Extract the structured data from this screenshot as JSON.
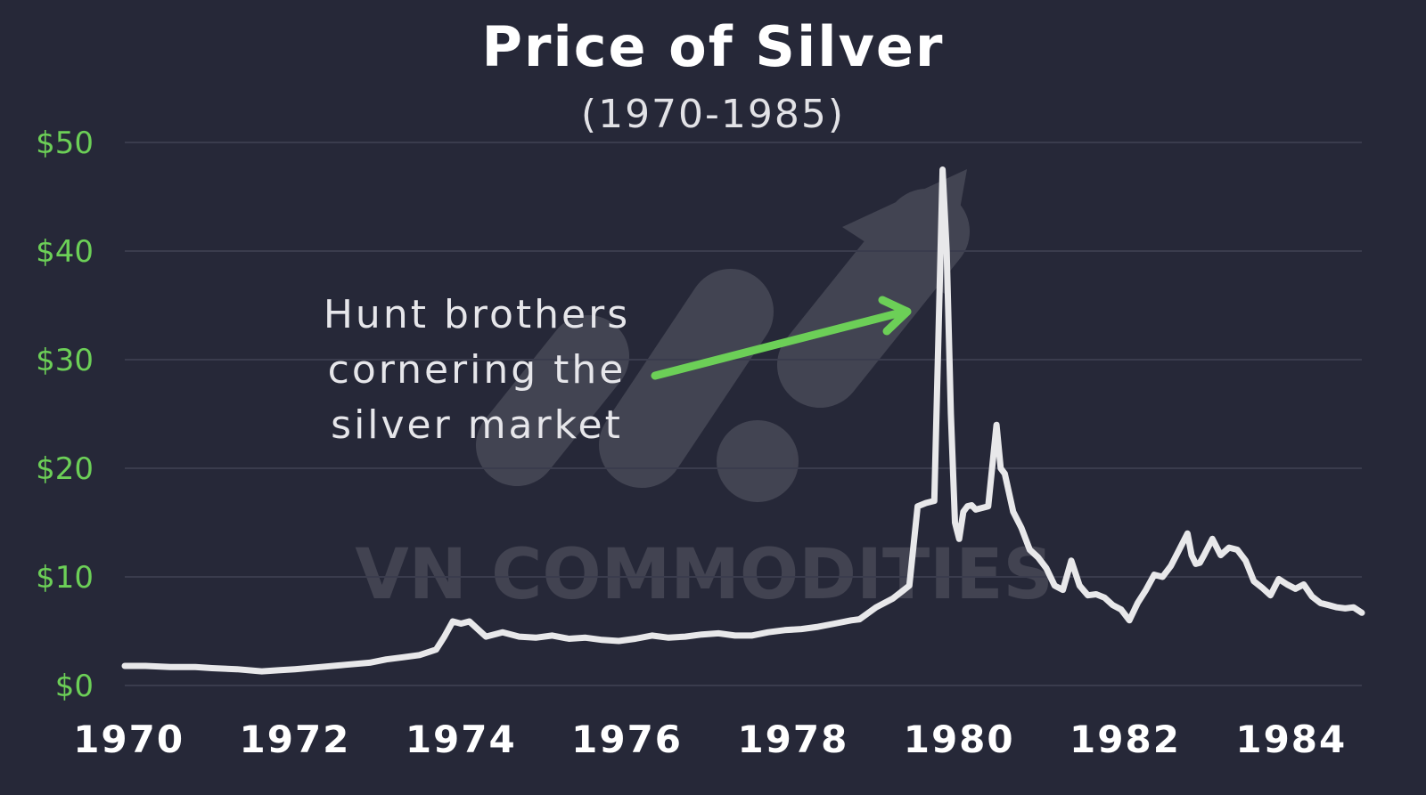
{
  "chart_data": {
    "type": "line",
    "title": "Price of Silver",
    "subtitle": "(1970-1985)",
    "xlabel": "",
    "ylabel": "",
    "xlim": [
      1969.95,
      1984.85
    ],
    "ylim": [
      0,
      50
    ],
    "grid": true,
    "y_ticks": [
      {
        "value": 0,
        "label": "$0"
      },
      {
        "value": 10,
        "label": "$10"
      },
      {
        "value": 20,
        "label": "$20"
      },
      {
        "value": 30,
        "label": "$30"
      },
      {
        "value": 40,
        "label": "$40"
      },
      {
        "value": 50,
        "label": "$50"
      }
    ],
    "x_ticks": [
      {
        "value": 1970,
        "label": "1970"
      },
      {
        "value": 1972,
        "label": "1972"
      },
      {
        "value": 1974,
        "label": "1974"
      },
      {
        "value": 1976,
        "label": "1976"
      },
      {
        "value": 1978,
        "label": "1978"
      },
      {
        "value": 1980,
        "label": "1980"
      },
      {
        "value": 1982,
        "label": "1982"
      },
      {
        "value": 1984,
        "label": "1984"
      }
    ],
    "series": [
      {
        "name": "",
        "color": "#e8e8ea",
        "x": [
          1969.95,
          1970.2,
          1970.5,
          1970.8,
          1971.0,
          1971.3,
          1971.6,
          1971.8,
          1972.0,
          1972.3,
          1972.6,
          1972.9,
          1973.1,
          1973.3,
          1973.5,
          1973.7,
          1973.8,
          1973.9,
          1974.0,
          1974.1,
          1974.3,
          1974.5,
          1974.7,
          1974.9,
          1975.1,
          1975.3,
          1975.5,
          1975.7,
          1975.9,
          1976.1,
          1976.3,
          1976.5,
          1976.7,
          1976.9,
          1977.1,
          1977.3,
          1977.5,
          1977.7,
          1977.9,
          1978.1,
          1978.3,
          1978.5,
          1978.7,
          1978.8,
          1979.0,
          1979.2,
          1979.3,
          1979.4,
          1979.5,
          1979.6,
          1979.7,
          1979.75,
          1979.8,
          1979.85,
          1979.9,
          1979.95,
          1980.0,
          1980.05,
          1980.1,
          1980.15,
          1980.2,
          1980.35,
          1980.45,
          1980.5,
          1980.55,
          1980.65,
          1980.75,
          1980.85,
          1980.95,
          1981.05,
          1981.15,
          1981.25,
          1981.35,
          1981.45,
          1981.55,
          1981.65,
          1981.75,
          1981.85,
          1981.95,
          1982.05,
          1982.15,
          1982.25,
          1982.35,
          1982.45,
          1982.55,
          1982.65,
          1982.75,
          1982.8,
          1982.85,
          1982.9,
          1982.95,
          1983.05,
          1983.15,
          1983.25,
          1983.35,
          1983.45,
          1983.55,
          1983.65,
          1983.75,
          1983.85,
          1983.95,
          1984.05,
          1984.15,
          1984.25,
          1984.35,
          1984.45,
          1984.55,
          1984.65,
          1984.75,
          1984.85
        ],
        "y": [
          1.8,
          1.8,
          1.7,
          1.7,
          1.6,
          1.5,
          1.3,
          1.4,
          1.5,
          1.7,
          1.9,
          2.1,
          2.4,
          2.6,
          2.8,
          3.3,
          4.5,
          5.9,
          5.7,
          5.9,
          4.5,
          4.9,
          4.5,
          4.4,
          4.6,
          4.3,
          4.4,
          4.2,
          4.1,
          4.3,
          4.6,
          4.4,
          4.5,
          4.7,
          4.8,
          4.6,
          4.6,
          4.9,
          5.1,
          5.2,
          5.4,
          5.7,
          6.0,
          6.1,
          7.2,
          8.0,
          8.6,
          9.2,
          16.5,
          16.8,
          17.0,
          32.0,
          47.5,
          40.0,
          25.0,
          15.0,
          13.5,
          16.0,
          16.5,
          16.6,
          16.2,
          16.5,
          24.0,
          20.0,
          19.5,
          16.0,
          14.5,
          12.5,
          11.8,
          10.8,
          9.2,
          8.8,
          11.5,
          9.2,
          8.3,
          8.4,
          8.1,
          7.4,
          7.0,
          6.0,
          7.6,
          8.8,
          10.2,
          10.0,
          11.0,
          12.5,
          14.0,
          12.0,
          11.2,
          11.3,
          12.0,
          13.5,
          12.0,
          12.7,
          12.5,
          11.5,
          9.6,
          9.0,
          8.3,
          9.8,
          9.3,
          8.9,
          9.3,
          8.2,
          7.6,
          7.4,
          7.2,
          7.1,
          7.2,
          6.7
        ]
      }
    ],
    "annotation": {
      "text_lines": [
        "Hunt brothers",
        "cornering the",
        "silver market"
      ]
    },
    "watermark": {
      "text": "VN COMMODITIES"
    },
    "colors": {
      "background": "#262838",
      "line": "#e8e8ea",
      "arrow": "#6ccf57",
      "y_tick_label": "#6ccf57",
      "gridline": "#3a3c4d"
    }
  }
}
